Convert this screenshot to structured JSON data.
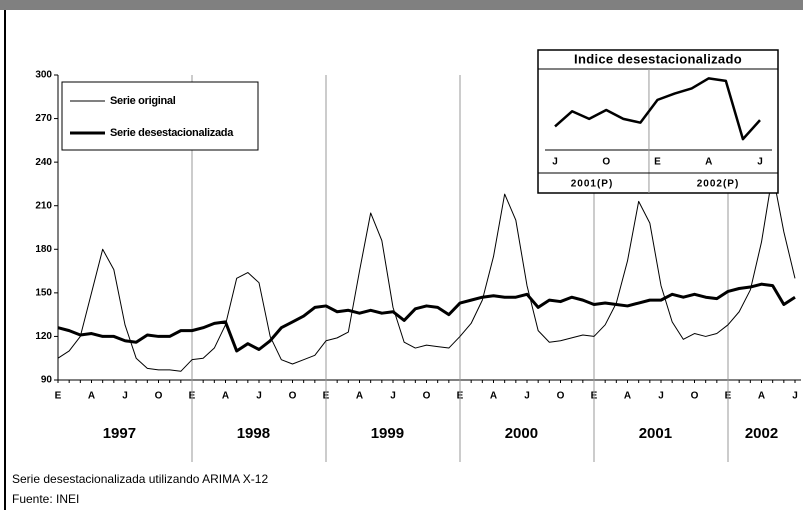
{
  "chart_data": [
    {
      "type": "line",
      "categories": [
        "E",
        null,
        null,
        "A",
        null,
        null,
        "J",
        null,
        null,
        "O",
        null,
        null,
        "E",
        null,
        null,
        "A",
        null,
        null,
        "J",
        null,
        null,
        "O",
        null,
        null,
        "E",
        null,
        null,
        "A",
        null,
        null,
        "J",
        null,
        null,
        "O",
        null,
        null,
        "E",
        null,
        null,
        "A",
        null,
        null,
        "J",
        null,
        null,
        "O",
        null,
        null,
        "E",
        null,
        null,
        "A",
        null,
        null,
        "J",
        null,
        null,
        "O",
        null,
        null,
        "E",
        null,
        null,
        "A",
        null,
        null,
        "J"
      ],
      "year_labels": [
        "1997",
        "1998",
        "1999",
        "2000",
        "2001",
        "2002"
      ],
      "ylim": [
        90,
        300
      ],
      "yticks": [
        90,
        120,
        150,
        180,
        210,
        240,
        270,
        300
      ],
      "legend": "upper left",
      "series": [
        {
          "name": "Serie original",
          "color": "#000000",
          "width": 1,
          "values": [
            105,
            110,
            120,
            150,
            180,
            166,
            128,
            105,
            98,
            97,
            97,
            96,
            104,
            105,
            112,
            128,
            160,
            164,
            157,
            120,
            104,
            101,
            104,
            107,
            117,
            119,
            123,
            165,
            205,
            186,
            140,
            116,
            112,
            114,
            113,
            112,
            120,
            129,
            145,
            175,
            218,
            200,
            155,
            124,
            116,
            117,
            119,
            121,
            120,
            128,
            143,
            172,
            213,
            198,
            155,
            130,
            118,
            122,
            120,
            122,
            128,
            137,
            152,
            185,
            232,
            192,
            160
          ]
        },
        {
          "name": "Serie desestacionalizada",
          "color": "#000000",
          "width": 3,
          "values": [
            126,
            124,
            121,
            122,
            120,
            120,
            117,
            116,
            121,
            120,
            120,
            124,
            124,
            126,
            129,
            130,
            110,
            115,
            111,
            117,
            126,
            130,
            134,
            140,
            141,
            137,
            138,
            136,
            138,
            136,
            137,
            131,
            139,
            141,
            140,
            135,
            143,
            145,
            147,
            148,
            147,
            147,
            149,
            140,
            145,
            144,
            147,
            145,
            142,
            143,
            142,
            141,
            143,
            145,
            145,
            149,
            147,
            149,
            147,
            146,
            151,
            153,
            154,
            156,
            155,
            142,
            147
          ]
        }
      ]
    },
    {
      "type": "line",
      "title": "Indice desestacionalizado",
      "categories": [
        "J",
        null,
        null,
        "O",
        null,
        null,
        "E",
        null,
        null,
        "A",
        null,
        null,
        "J"
      ],
      "group_labels": [
        "2001(P)",
        "2002(P)"
      ],
      "ylim": [
        245,
        305
      ],
      "series": [
        {
          "color": "#000000",
          "values": [
            262,
            274,
            268,
            275,
            268,
            265,
            283,
            288,
            292,
            300,
            298,
            252,
            267
          ]
        }
      ]
    }
  ],
  "notes": [
    "Serie desestacionalizada utilizando ARIMA X-12",
    "Fuente: INEI"
  ]
}
